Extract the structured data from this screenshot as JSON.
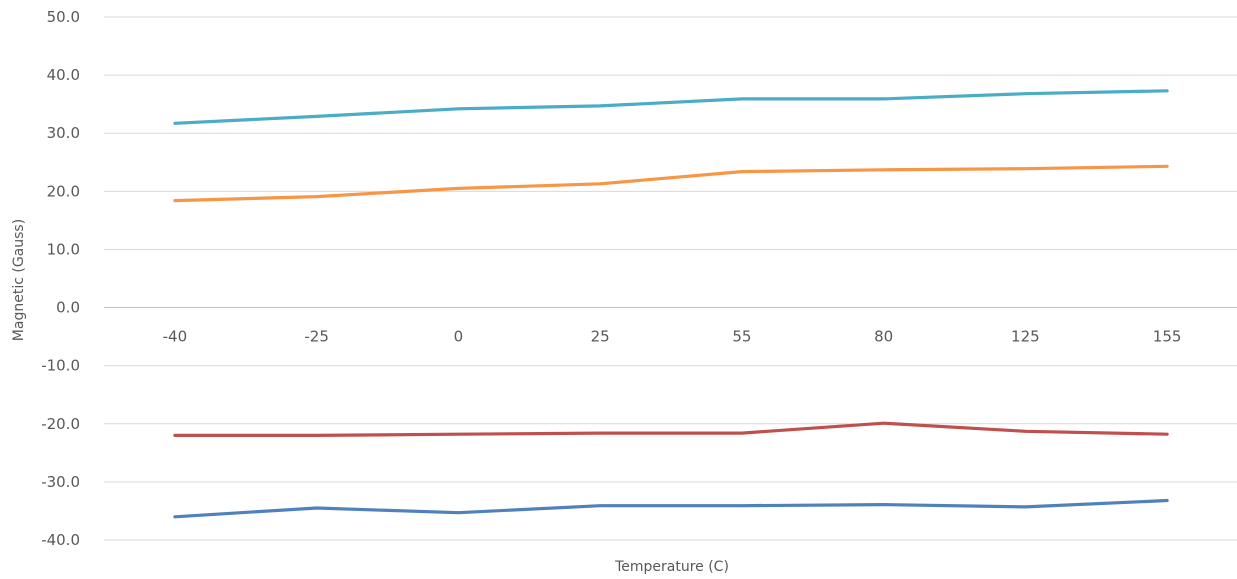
{
  "chart_data": {
    "type": "line",
    "title": "",
    "xlabel": "Temperature (C)",
    "ylabel": "Magnetic (Gauss)",
    "ylim": [
      -40,
      50
    ],
    "y_ticks": [
      "50.0",
      "40.0",
      "30.0",
      "20.0",
      "10.0",
      "0.0",
      "-10.0",
      "-20.0",
      "-30.0",
      "-40.0"
    ],
    "grid": true,
    "legend": "none",
    "categories": [
      "-40",
      "-25",
      "0",
      "25",
      "55",
      "80",
      "125",
      "155"
    ],
    "series": [
      {
        "color": "#4BACC6",
        "values": [
          31.7,
          32.9,
          34.2,
          34.7,
          35.9,
          35.9,
          36.8,
          37.3
        ]
      },
      {
        "color": "#F79646",
        "values": [
          18.4,
          19.1,
          20.5,
          21.3,
          23.4,
          23.7,
          23.9,
          24.3
        ]
      },
      {
        "color": "#C0504D",
        "values": [
          -22.0,
          -22.0,
          -21.8,
          -21.6,
          -21.6,
          -19.9,
          -21.3,
          -21.8
        ]
      },
      {
        "color": "#4F81BD",
        "values": [
          -36.0,
          -34.5,
          -35.3,
          -34.1,
          -34.1,
          -33.9,
          -34.3,
          -33.2
        ]
      }
    ]
  }
}
